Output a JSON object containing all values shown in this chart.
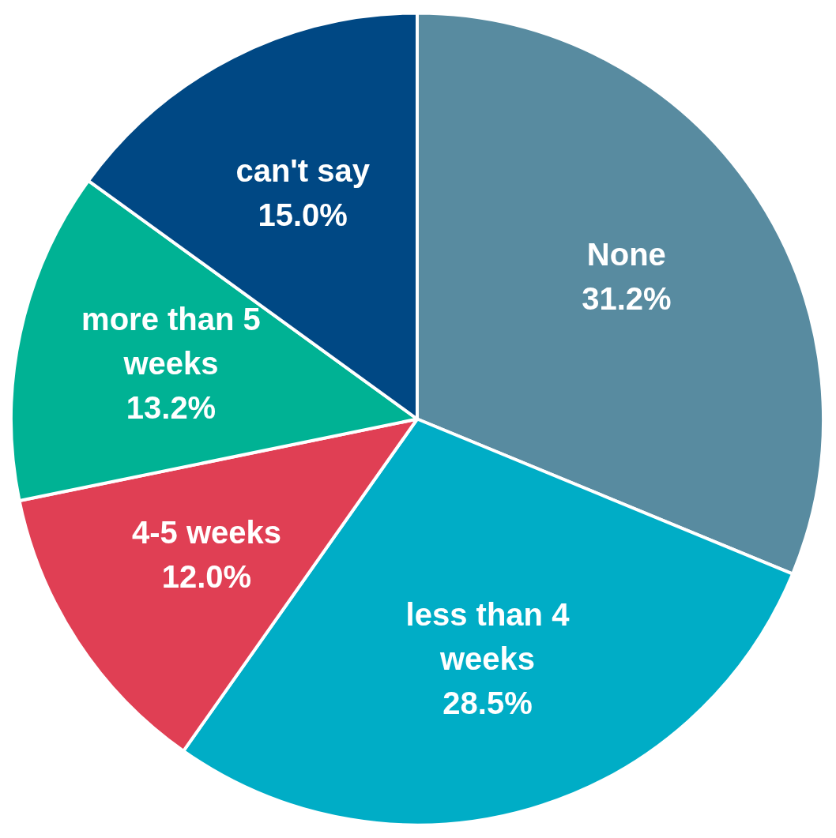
{
  "chart_data": {
    "type": "pie",
    "categories": [
      "None",
      "less than 4 weeks",
      "4-5 weeks",
      "more than 5 weeks",
      "can't say"
    ],
    "values": [
      31.2,
      28.5,
      12.0,
      13.2,
      15.0
    ],
    "colors": [
      "#588ba0",
      "#00adc6",
      "#e03f54",
      "#00b294",
      "#004884"
    ],
    "value_labels": [
      "31.2%",
      "28.5%",
      "12.0%",
      "13.2%",
      "15.0%"
    ],
    "legend": false
  }
}
